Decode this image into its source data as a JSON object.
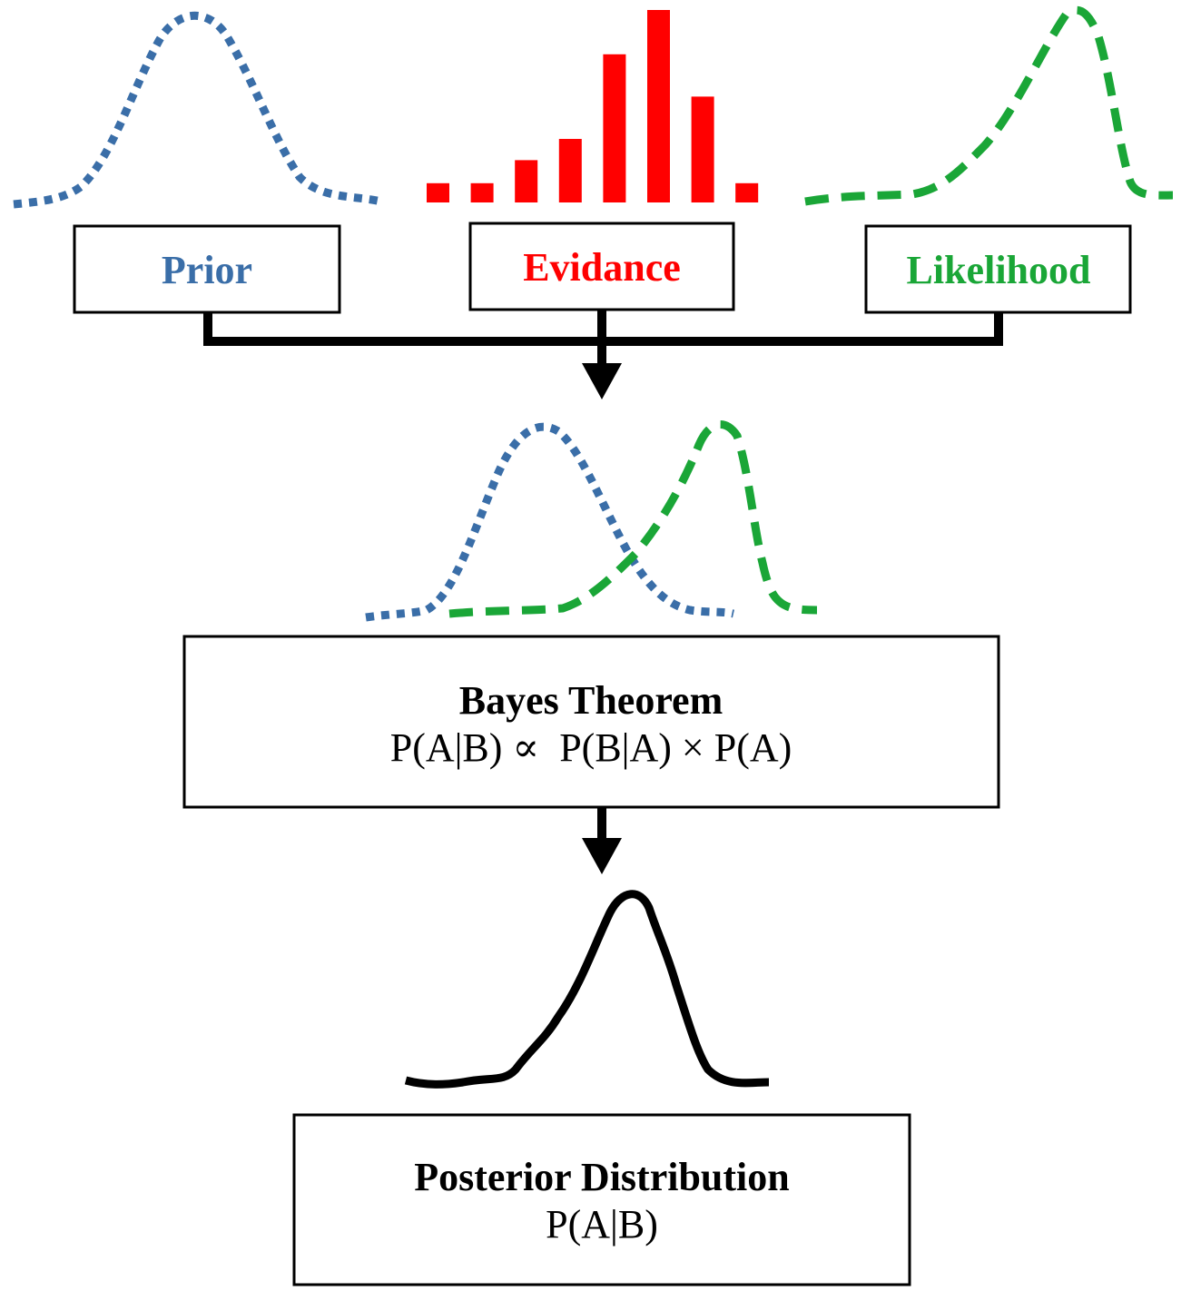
{
  "colors": {
    "prior": "#3a6ea8",
    "evidence": "#ff0000",
    "likelihood": "#1aa637",
    "posterior": "#000000"
  },
  "boxes": {
    "prior": {
      "label": "Prior"
    },
    "evidence": {
      "label": "Evidance"
    },
    "likelihood": {
      "label": "Likelihood"
    },
    "bayes": {
      "title": "Bayes Theorem",
      "formula": "P(A|B) ∝  P(B|A) × P(A)"
    },
    "posterior": {
      "title": "Posterior Distribution",
      "formula": "P(A|B)"
    }
  },
  "evidence_bars": [
    0.1,
    0.1,
    0.22,
    0.33,
    0.77,
    1.0,
    0.55,
    0.1
  ]
}
